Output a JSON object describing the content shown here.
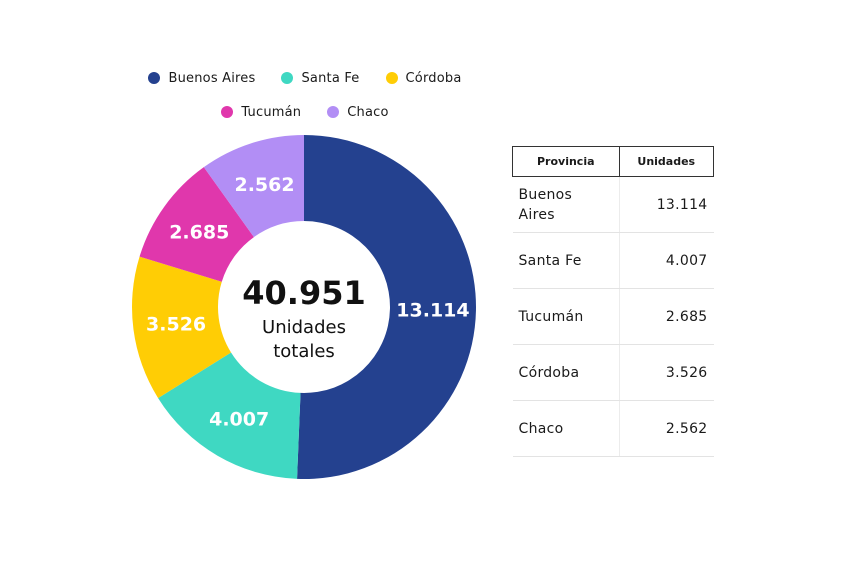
{
  "chart_data": {
    "type": "pie",
    "variant": "donut",
    "categories": [
      "Buenos Aires",
      "Santa Fe",
      "Córdoba",
      "Tucumán",
      "Chaco"
    ],
    "values": [
      13114,
      4007,
      3526,
      2685,
      2562
    ],
    "labels": [
      "13.114",
      "4.007",
      "3.526",
      "2.685",
      "2.562"
    ],
    "colors": [
      "#24418f",
      "#3fd8c2",
      "#ffcd05",
      "#e037ac",
      "#b28ef5"
    ],
    "center_value": "40.951",
    "center_label_line1": "Unidades",
    "center_label_line2": "totales",
    "legend": [
      {
        "name": "Buenos Aires",
        "color": "#24418f"
      },
      {
        "name": "Santa Fe",
        "color": "#3fd8c2"
      },
      {
        "name": "Córdoba",
        "color": "#ffcd05"
      },
      {
        "name": "Tucumán",
        "color": "#e037ac"
      },
      {
        "name": "Chaco",
        "color": "#b28ef5"
      }
    ]
  },
  "table": {
    "headers": [
      "Provincia",
      "Unidades"
    ],
    "rows": [
      {
        "provincia": "Buenos Aires",
        "unidades": "13.114"
      },
      {
        "provincia": "Santa Fe",
        "unidades": "4.007"
      },
      {
        "provincia": "Tucumán",
        "unidades": "2.685"
      },
      {
        "provincia": "Córdoba",
        "unidades": "3.526"
      },
      {
        "provincia": "Chaco",
        "unidades": "2.562"
      }
    ]
  }
}
